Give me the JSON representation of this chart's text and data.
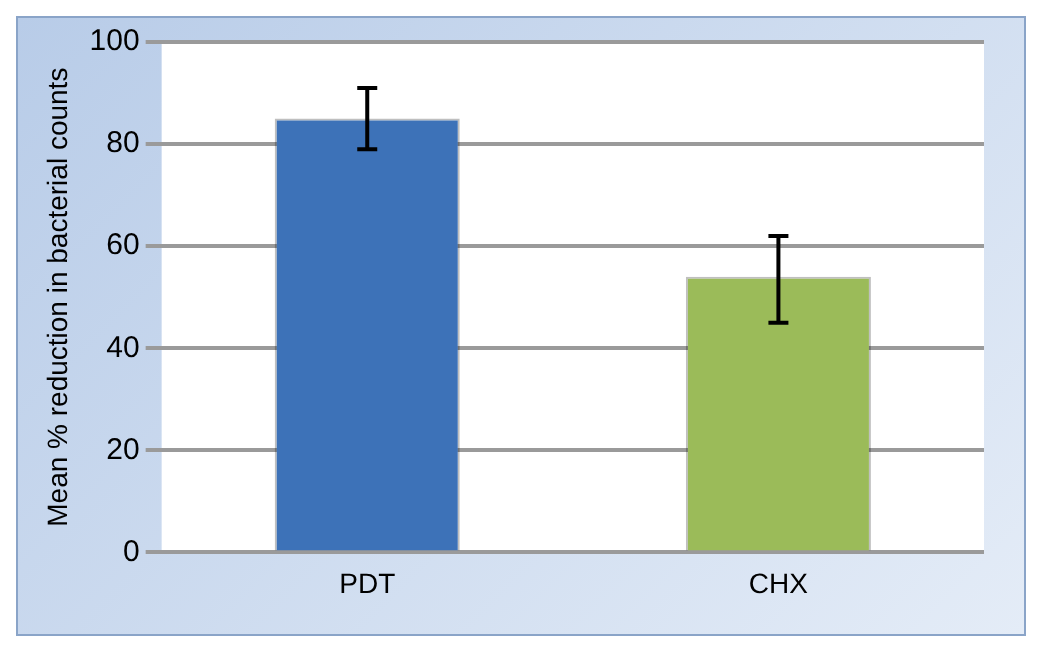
{
  "chart_data": {
    "type": "bar",
    "ylabel": "Mean % reduction in bacterial counts",
    "categories": [
      "PDT",
      "CHX"
    ],
    "values": [
      85,
      54
    ],
    "colors": [
      "#3d72b8",
      "#9bbb59"
    ],
    "errors": [
      [
        79,
        91
      ],
      [
        45,
        62
      ]
    ],
    "ylim": [
      0,
      100
    ],
    "yticks": [
      0,
      20,
      40,
      60,
      80,
      100
    ],
    "grid": "y",
    "legend": false
  }
}
